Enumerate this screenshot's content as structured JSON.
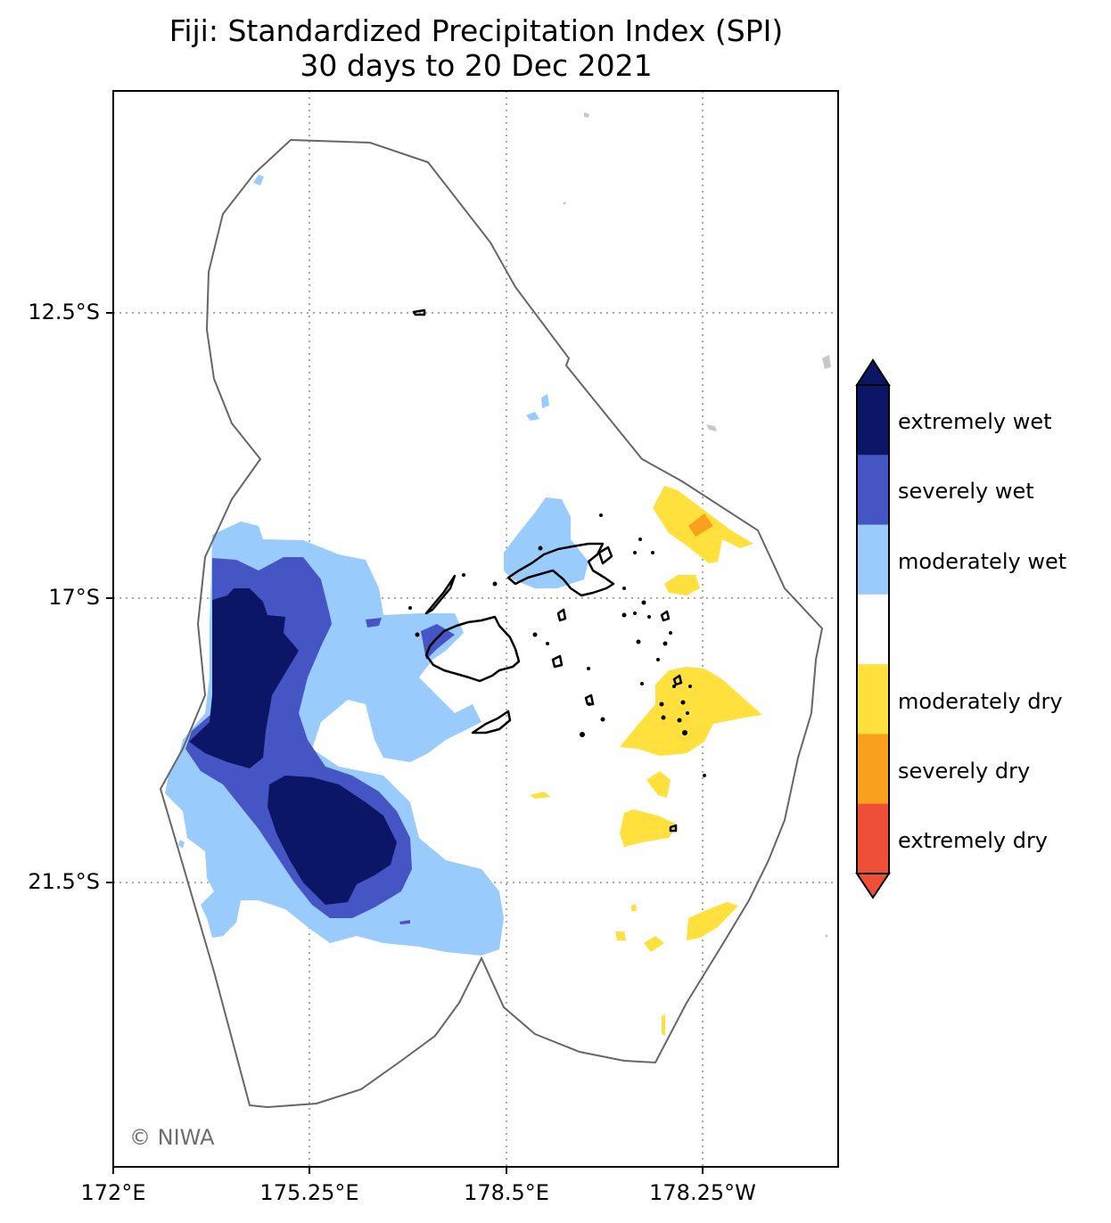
{
  "title_line1": "Fiji: Standardized Precipitation Index (SPI)",
  "title_line2": "30 days to 20 Dec 2021",
  "credit": "© NIWA",
  "axes": {
    "y_ticks": [
      "12.5°S",
      "17°S",
      "21.5°S"
    ],
    "x_ticks": [
      "172°E",
      "175.25°E",
      "178.5°E",
      "178.25°W"
    ],
    "grid": "dotted"
  },
  "legend": {
    "placement": "right",
    "items": [
      {
        "label": "extremely wet",
        "color": "#0b1766"
      },
      {
        "label": "severely wet",
        "color": "#4555c3"
      },
      {
        "label": "moderately wet",
        "color": "#99ccfc"
      },
      {
        "label": "",
        "color": "#ffffff"
      },
      {
        "label": "moderately dry",
        "color": "#ffe03c"
      },
      {
        "label": "severely dry",
        "color": "#f9a01e"
      },
      {
        "label": "extremely dry",
        "color": "#f04f37"
      }
    ]
  },
  "colors": {
    "boundary": "#666666",
    "coastline": "#000000",
    "gridline": "#aaaaaa"
  }
}
